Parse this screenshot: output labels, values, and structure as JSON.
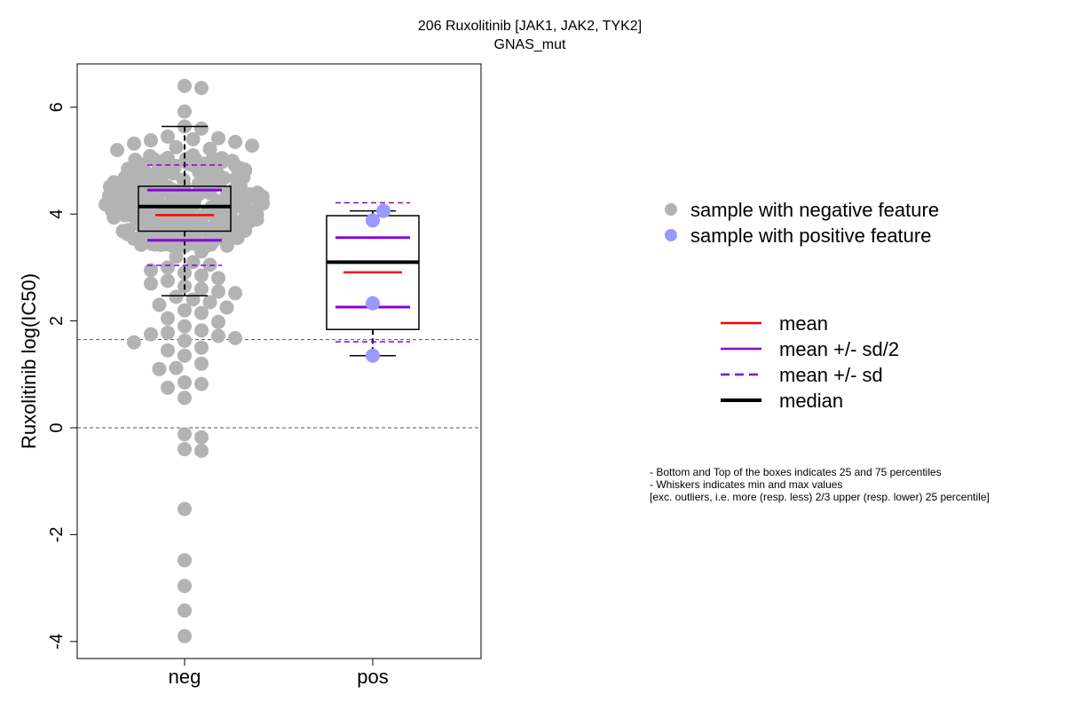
{
  "chart_data": {
    "type": "scatter",
    "title": "206 Ruxolitinib [JAK1, JAK2, TYK2]",
    "subtitle": "GNAS_mut",
    "ylabel": "Ruxolitinib log(IC50)",
    "ylim": [
      -4.3,
      6.8
    ],
    "yticks": [
      -4,
      -2,
      0,
      2,
      4,
      6
    ],
    "categories": [
      "neg",
      "pos"
    ],
    "reference_lines": [
      1.65,
      0
    ],
    "colors": {
      "neg_point": "#b3b3b3",
      "pos_point": "#9999ff",
      "mean": "#ff0000",
      "sd": "#8800dd",
      "median": "#000000"
    },
    "boxes": [
      {
        "group": "neg",
        "q1": 3.68,
        "median": 4.14,
        "q3": 4.52,
        "whisker_low": 2.47,
        "whisker_high": 5.64,
        "mean": 3.98,
        "mean_minus_half_sd": 3.51,
        "mean_plus_half_sd": 4.45,
        "mean_minus_sd": 3.04,
        "mean_plus_sd": 4.92
      },
      {
        "group": "pos",
        "q1": 1.84,
        "median": 3.1,
        "q3": 3.97,
        "whisker_low": 1.35,
        "whisker_high": 4.06,
        "mean": 2.91,
        "mean_minus_half_sd": 2.26,
        "mean_plus_half_sd": 3.56,
        "mean_minus_sd": 1.61,
        "mean_plus_sd": 4.21
      }
    ],
    "series": [
      {
        "name": "sample with negative feature",
        "group": "neg",
        "outer_values": [
          6.4,
          6.36,
          5.92,
          5.64,
          5.6,
          5.45,
          5.42,
          5.4,
          5.38,
          5.35,
          5.32,
          5.28,
          5.25,
          5.22,
          5.2,
          5.1,
          5.05,
          3.4,
          3.3,
          3.2,
          3.1,
          3.05,
          3.0,
          2.95,
          2.9,
          2.85,
          2.8,
          2.75,
          2.7,
          2.65,
          2.6,
          2.55,
          2.52,
          2.45,
          2.4,
          2.35,
          2.3,
          2.25,
          2.2,
          2.15,
          2.05,
          1.98,
          1.9,
          1.82,
          1.78,
          1.75,
          1.72,
          1.68,
          1.63,
          1.6,
          1.5,
          1.45,
          1.35,
          1.2,
          1.12,
          1.1,
          0.85,
          0.82,
          0.75,
          0.56,
          -0.12,
          -0.18,
          -0.4,
          -0.43,
          -1.52,
          -2.48,
          -2.96,
          -3.42,
          -3.9
        ],
        "dense_core": {
          "range": [
            3.4,
            5.1
          ],
          "count": 280,
          "note": "dense cloud of overlapping points spanning the box"
        }
      },
      {
        "name": "sample with positive feature",
        "group": "pos",
        "values": [
          4.06,
          3.88,
          2.33,
          1.35
        ]
      }
    ],
    "legend_points": [
      {
        "label": "sample with negative feature",
        "color": "#b3b3b3"
      },
      {
        "label": "sample with positive feature",
        "color": "#9999ff"
      }
    ],
    "legend_lines": [
      {
        "label": "mean",
        "color": "#ff0000",
        "style": "solid",
        "weight": "normal"
      },
      {
        "label": "mean +/- sd/2",
        "color": "#8800dd",
        "style": "solid",
        "weight": "normal"
      },
      {
        "label": "mean +/- sd",
        "color": "#8800dd",
        "style": "dashed",
        "weight": "normal"
      },
      {
        "label": "median",
        "color": "#000000",
        "style": "solid",
        "weight": "bold"
      }
    ],
    "notes": [
      "- Bottom and Top of the boxes indicates 25 and 75 percentiles",
      "- Whiskers indicates min and max values",
      "[exc. outliers, i.e. more (resp. less) 2/3 upper (resp. lower) 25 percentile]"
    ]
  }
}
